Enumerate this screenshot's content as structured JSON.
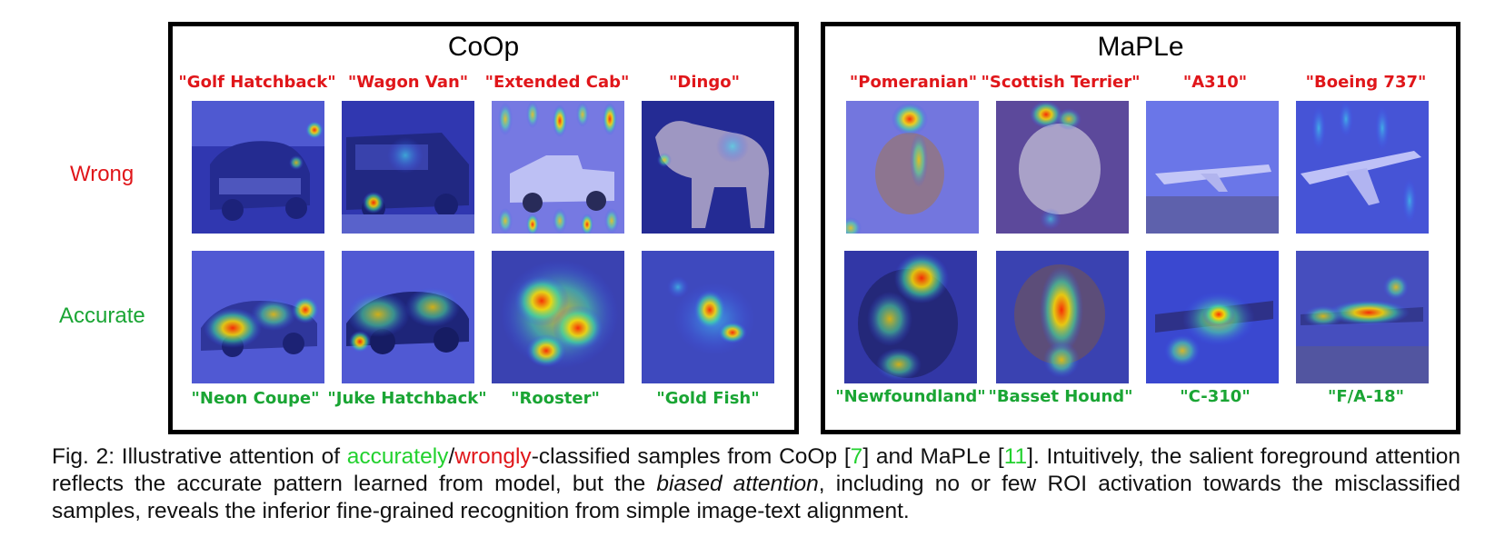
{
  "figure": {
    "panels": [
      {
        "title": "CoOp",
        "wrong": [
          "\"Golf Hatchback\"",
          "\"Wagon Van\"",
          "\"Extended Cab\"",
          "\"Dingo\""
        ],
        "accurate": [
          "\"Neon Coupe\"",
          "\"Juke Hatchback\"",
          "\"Rooster\"",
          "\"Gold Fish\""
        ]
      },
      {
        "title": "MaPLe",
        "wrong": [
          "\"Pomeranian\"",
          "\"Scottish Terrier\"",
          "\"A310\"",
          "\"Boeing 737\""
        ],
        "accurate": [
          "\"Newfoundland\"",
          "\"Basset Hound\"",
          "\"C-310\"",
          "\"F/A-18\""
        ]
      }
    ],
    "row_labels": {
      "wrong": "Wrong",
      "accurate": "Accurate"
    },
    "colors": {
      "wrong": "#e0161a",
      "accurate": "#1aa534",
      "caption_accent": "#22d12e"
    }
  },
  "caption": {
    "prefix": "Fig. 2: Illustrative attention of ",
    "accurately": "accurately",
    "slash": "/",
    "wrongly": "wrongly",
    "mid1": "-classified samples from CoOp [",
    "ref1": "7",
    "mid2": "] and MaPLe [",
    "ref2": "11",
    "mid3": "]. Intuitively, the salient foreground attention reflects the accurate pattern learned from model, but the ",
    "emph": "biased attention",
    "suffix": ", including no or few ROI activation towards the misclassified samples, reveals the inferior fine-grained recognition from simple image-text alignment."
  }
}
